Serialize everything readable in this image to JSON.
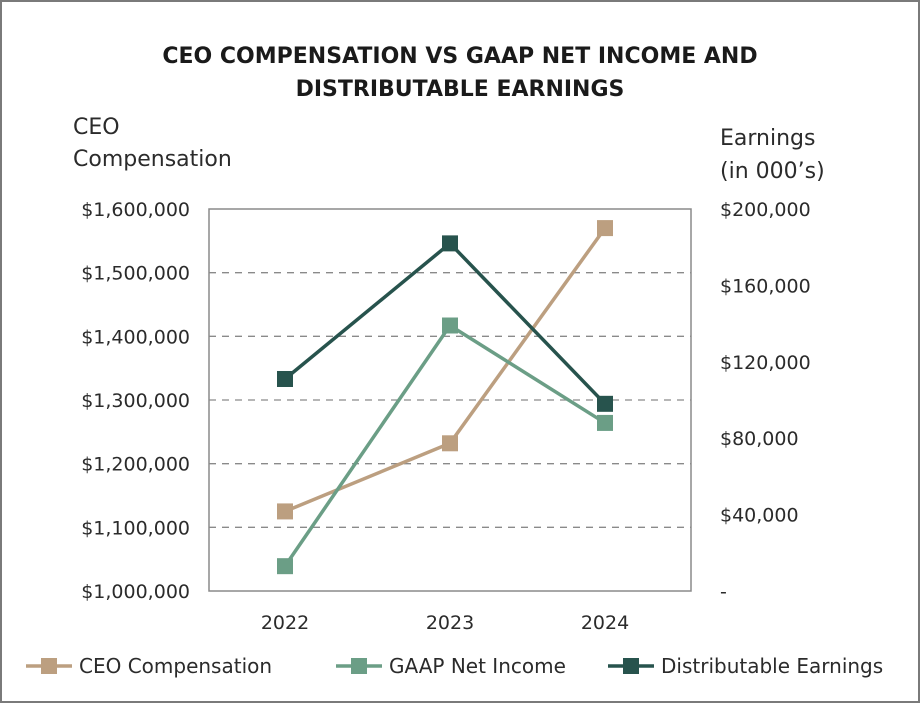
{
  "chart_data": {
    "type": "line",
    "title_lines": [
      "CEO COMPENSATION VS GAAP NET INCOME AND",
      "DISTRIBUTABLE EARNINGS"
    ],
    "left_axis_title": [
      "CEO",
      "Compensation"
    ],
    "right_axis_title": [
      "Earnings",
      "(in 000’s)"
    ],
    "categories": [
      "2022",
      "2023",
      "2024"
    ],
    "left_ylim": [
      1000000,
      1600000
    ],
    "right_ylim": [
      0,
      200000
    ],
    "left_ticks": [
      {
        "value": 1000000,
        "label": "$1,000,000"
      },
      {
        "value": 1100000,
        "label": "$1,100,000"
      },
      {
        "value": 1200000,
        "label": "$1,200,000"
      },
      {
        "value": 1300000,
        "label": "$1,300,000"
      },
      {
        "value": 1400000,
        "label": "$1,400,000"
      },
      {
        "value": 1500000,
        "label": "$1,500,000"
      },
      {
        "value": 1600000,
        "label": "$1,600,000"
      }
    ],
    "right_ticks": [
      {
        "value": 0,
        "label": "-"
      },
      {
        "value": 40000,
        "label": "$40,000"
      },
      {
        "value": 80000,
        "label": "$80,000"
      },
      {
        "value": 120000,
        "label": "$120,000"
      },
      {
        "value": 160000,
        "label": "$160,000"
      },
      {
        "value": 200000,
        "label": "$200,000"
      }
    ],
    "gridlines": "dashed",
    "legend_position": "bottom",
    "series": [
      {
        "name": "CEO Compensation",
        "axis": "left",
        "color": "#bc9f80",
        "values": [
          1125000,
          1232000,
          1570000
        ]
      },
      {
        "name": "GAAP Net Income",
        "axis": "right",
        "color": "#6b9e86",
        "values": [
          13000,
          139000,
          88000
        ]
      },
      {
        "name": "Distributable Earnings",
        "axis": "right",
        "color": "#27534d",
        "values": [
          111000,
          182000,
          98000
        ]
      }
    ]
  }
}
